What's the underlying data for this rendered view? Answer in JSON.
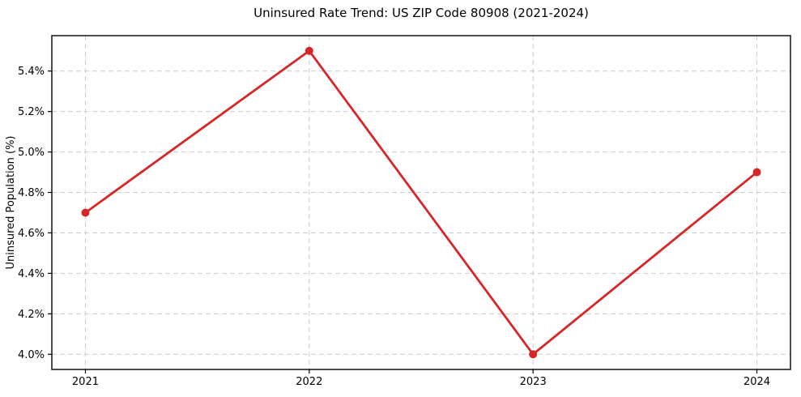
{
  "chart_data": {
    "type": "line",
    "title": "Uninsured Rate Trend: US ZIP Code 80908 (2021-2024)",
    "xlabel": "",
    "ylabel": "Uninsured Population (%)",
    "series_name": "Uninsured rate",
    "x": [
      2021,
      2022,
      2023,
      2024
    ],
    "x_tick_labels": [
      "2021",
      "2022",
      "2023",
      "2024"
    ],
    "values": [
      4.7,
      5.5,
      4.0,
      4.9
    ],
    "y_ticks": [
      4.0,
      4.2,
      4.4,
      4.6,
      4.8,
      5.0,
      5.2,
      5.4
    ],
    "y_tick_labels": [
      "4.0%",
      "4.2%",
      "4.4%",
      "4.6%",
      "4.8%",
      "5.0%",
      "5.2%",
      "5.4%"
    ],
    "xlim": [
      2020.85,
      2024.15
    ],
    "ylim": [
      3.925,
      5.575
    ],
    "grid": true,
    "legend": "none",
    "line_color": "#d62728",
    "grid_color": "#cccccc",
    "spine_color": "#000000",
    "background_color": "#ffffff"
  }
}
